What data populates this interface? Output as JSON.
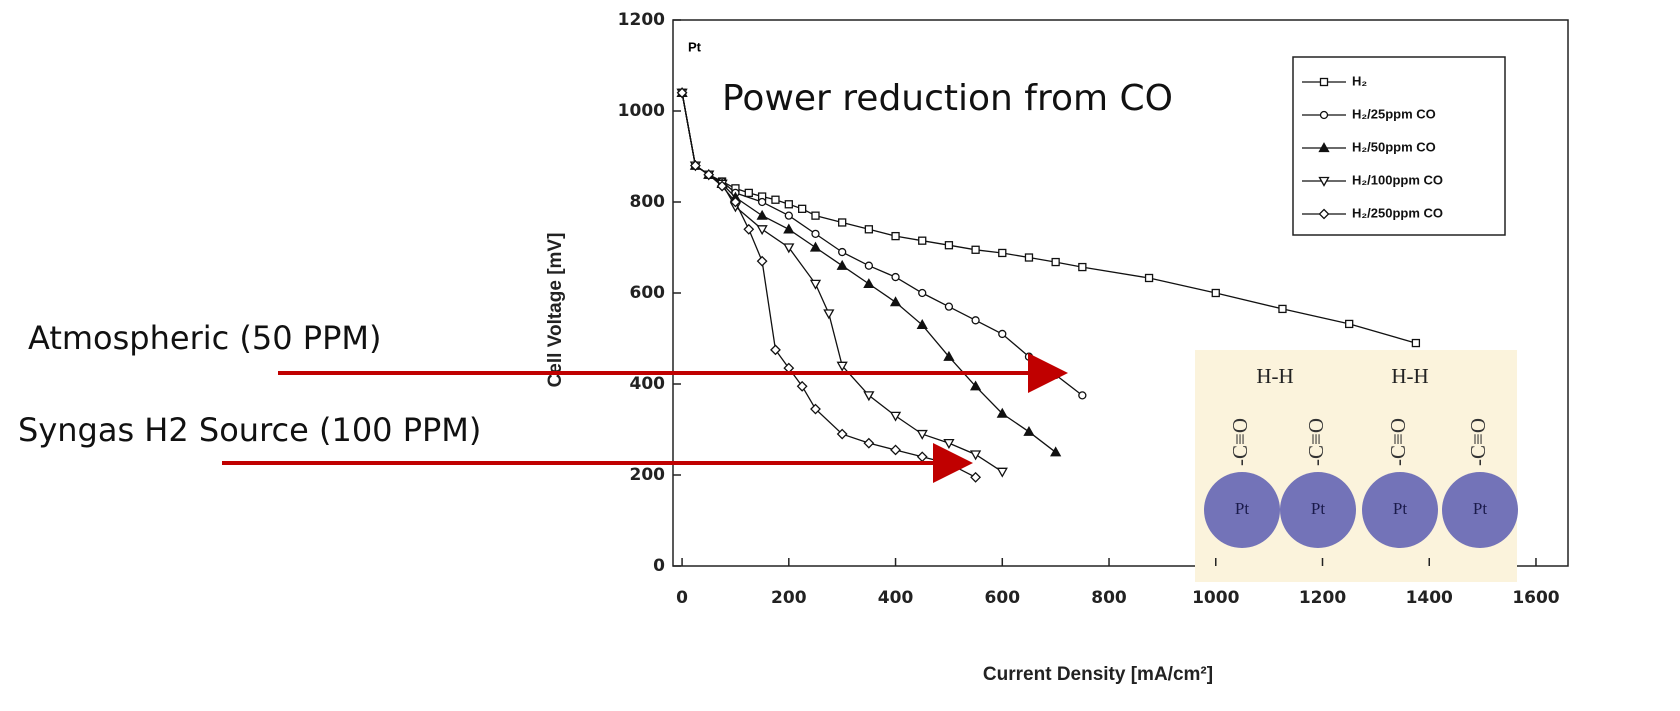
{
  "chart_data": {
    "type": "line",
    "x_label": "Current Density [mA/cm²]",
    "y_label": "Cell Voltage [mV]",
    "xlim": [
      -17,
      1660
    ],
    "ylim": [
      0,
      1200
    ],
    "xticks": [
      0,
      200,
      400,
      600,
      800,
      1000,
      1200,
      1400,
      1600
    ],
    "yticks": [
      0,
      200,
      400,
      600,
      800,
      1000,
      1200
    ],
    "legend": "upper right",
    "series": [
      {
        "name": "H₂",
        "color": "#111111",
        "marker": "square",
        "x": [
          0,
          25,
          50,
          75,
          100,
          125,
          150,
          175,
          200,
          225,
          250,
          300,
          350,
          400,
          450,
          500,
          550,
          600,
          650,
          700,
          750,
          875,
          1000,
          1125,
          1250,
          1375
        ],
        "values": [
          1040,
          880,
          860,
          845,
          830,
          820,
          812,
          805,
          795,
          785,
          770,
          755,
          740,
          725,
          715,
          705,
          695,
          688,
          678,
          668,
          657,
          633,
          600,
          565,
          532,
          490
        ]
      },
      {
        "name": "H₂/25ppm  CO",
        "color": "#111111",
        "marker": "circle",
        "x": [
          0,
          25,
          50,
          75,
          100,
          150,
          200,
          250,
          300,
          350,
          400,
          450,
          500,
          550,
          600,
          650,
          700,
          750
        ],
        "values": [
          1040,
          880,
          860,
          845,
          820,
          800,
          770,
          730,
          690,
          660,
          635,
          600,
          570,
          540,
          510,
          460,
          420,
          375
        ]
      },
      {
        "name": "H₂/50ppm  CO",
        "color": "#111111",
        "marker": "triangle-up",
        "x": [
          0,
          25,
          50,
          75,
          100,
          150,
          200,
          250,
          300,
          350,
          400,
          450,
          500,
          550,
          600,
          650,
          700
        ],
        "values": [
          1040,
          880,
          860,
          840,
          810,
          770,
          740,
          700,
          660,
          620,
          580,
          530,
          460,
          395,
          335,
          295,
          250
        ]
      },
      {
        "name": "H₂/100ppm  CO",
        "color": "#111111",
        "marker": "triangle-down",
        "x": [
          0,
          25,
          50,
          75,
          100,
          150,
          200,
          250,
          275,
          300,
          350,
          400,
          450,
          500,
          550,
          600
        ],
        "values": [
          1040,
          880,
          860,
          840,
          790,
          740,
          700,
          620,
          555,
          440,
          375,
          330,
          290,
          270,
          245,
          207
        ]
      },
      {
        "name": "H₂/250ppm  CO",
        "color": "#111111",
        "marker": "diamond",
        "x": [
          0,
          25,
          50,
          75,
          100,
          125,
          150,
          175,
          200,
          225,
          250,
          300,
          350,
          400,
          450,
          500,
          550
        ],
        "values": [
          1040,
          880,
          860,
          835,
          800,
          740,
          670,
          475,
          435,
          395,
          345,
          290,
          270,
          255,
          240,
          225,
          195
        ]
      }
    ],
    "annotations": {
      "corner": "Pt",
      "note": "Power reduction from CO",
      "arrow_1": "Atmospheric  (50 PPM)",
      "arrow_2": "Syngas H2 Source (100 PPM)"
    },
    "inset": {
      "hh": [
        "H-H",
        "H-H"
      ],
      "bond": [
        "-C≡O",
        "-C≡O",
        "-C≡O",
        "-C≡O"
      ],
      "atom": [
        "Pt",
        "Pt",
        "Pt",
        "Pt"
      ]
    }
  }
}
